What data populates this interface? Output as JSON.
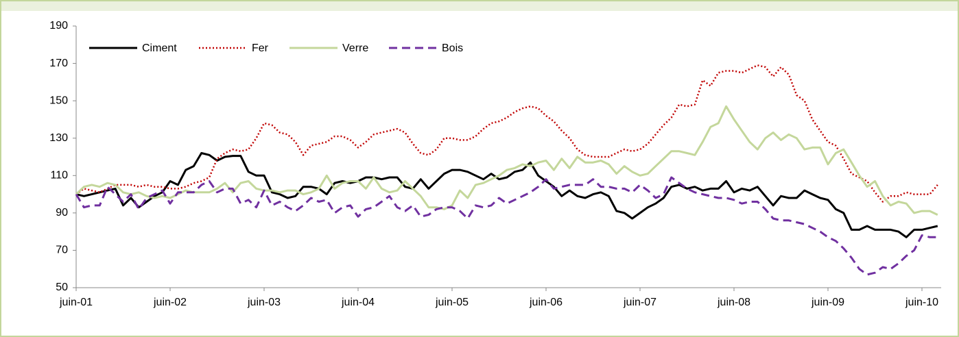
{
  "chart_data": {
    "type": "line",
    "categories": [
      "juin-01",
      null,
      null,
      null,
      null,
      null,
      null,
      null,
      null,
      null,
      null,
      null,
      "juin-02",
      null,
      null,
      null,
      null,
      null,
      null,
      null,
      null,
      null,
      null,
      null,
      "juin-03",
      null,
      null,
      null,
      null,
      null,
      null,
      null,
      null,
      null,
      null,
      null,
      "juin-04",
      null,
      null,
      null,
      null,
      null,
      null,
      null,
      null,
      null,
      null,
      null,
      "juin-05",
      null,
      null,
      null,
      null,
      null,
      null,
      null,
      null,
      null,
      null,
      null,
      "juin-06",
      null,
      null,
      null,
      null,
      null,
      null,
      null,
      null,
      null,
      null,
      null,
      "juin-07",
      null,
      null,
      null,
      null,
      null,
      null,
      null,
      null,
      null,
      null,
      null,
      "juin-08",
      null,
      null,
      null,
      null,
      null,
      null,
      null,
      null,
      null,
      null,
      null,
      "juin-09",
      null,
      null,
      null,
      null,
      null,
      null,
      null,
      null,
      null,
      null,
      null,
      "juin-10",
      null,
      null
    ],
    "series": [
      {
        "name": "Ciment",
        "color": "#000000",
        "style": "solid",
        "values": [
          100,
          99,
          100,
          101,
          102,
          103,
          94,
          98,
          93,
          96,
          99,
          101,
          107,
          105,
          113,
          115,
          122,
          121,
          118,
          120,
          120.5,
          120.5,
          112,
          110,
          110,
          101,
          100,
          98,
          99,
          104,
          104,
          103,
          100,
          106,
          107,
          106,
          107,
          109,
          109,
          108,
          109,
          109,
          104,
          103,
          108,
          103,
          107,
          111,
          113,
          113,
          112,
          110,
          108,
          111,
          108,
          109,
          112,
          113,
          117,
          110,
          107,
          104,
          99,
          102,
          99,
          98,
          100,
          101,
          99,
          91,
          90,
          87,
          90,
          93,
          95,
          98,
          104,
          105,
          103,
          104,
          102,
          103,
          103,
          107,
          101,
          103,
          102,
          104,
          99,
          94,
          99,
          98,
          98,
          102,
          100,
          98,
          97,
          92,
          90,
          81,
          81,
          83,
          81,
          81,
          81,
          80,
          77,
          81,
          81,
          82,
          83
        ]
      },
      {
        "name": "Fer",
        "color": "#c00000",
        "style": "dotted",
        "values": [
          100,
          103,
          102,
          101,
          103,
          105,
          105,
          105,
          104,
          105,
          104,
          104,
          103,
          103,
          104,
          106,
          107,
          109,
          119,
          122,
          124,
          123,
          124,
          130,
          138,
          137,
          133,
          132,
          128,
          121,
          126,
          127,
          128,
          131,
          131,
          129,
          125,
          128,
          132,
          133,
          134,
          135,
          133,
          127,
          122,
          121,
          124,
          130,
          130,
          129,
          129,
          131,
          135,
          138,
          139,
          141,
          144,
          146,
          147,
          146,
          142,
          139,
          134,
          130,
          124,
          121,
          120,
          120,
          120,
          122,
          124,
          123,
          124,
          127,
          132,
          137,
          141,
          148,
          147,
          148,
          161,
          158,
          165,
          166,
          166,
          165,
          167,
          169,
          168,
          163,
          168,
          164,
          153,
          150,
          140,
          134,
          128,
          126,
          119,
          111,
          109,
          107,
          101,
          96,
          99,
          99,
          101,
          100,
          100,
          100,
          105
        ]
      },
      {
        "name": "Verre",
        "color": "#c4d79b",
        "style": "solid",
        "values": [
          100,
          104,
          105,
          104,
          106,
          105,
          101,
          100,
          101,
          99,
          98,
          99,
          98,
          100,
          102,
          101,
          101,
          101,
          103,
          106,
          101,
          106,
          107,
          103,
          102,
          102,
          101,
          102,
          102,
          100,
          101,
          103,
          110,
          103,
          106,
          107,
          107,
          103,
          109,
          103,
          101,
          102,
          107,
          103,
          99,
          93,
          93,
          92,
          94,
          102,
          98,
          105,
          106,
          108,
          110,
          113,
          114,
          116,
          115,
          117,
          118,
          113,
          119,
          114,
          120,
          117,
          117,
          118,
          116,
          111,
          115,
          112,
          110,
          111,
          115,
          119,
          123,
          123,
          122,
          121,
          128,
          136,
          138,
          147,
          140,
          134,
          128,
          124,
          130,
          133,
          129,
          132,
          130,
          124,
          125,
          125,
          116,
          122,
          124,
          117,
          110,
          104,
          107,
          99,
          94,
          96,
          95,
          90,
          91,
          91,
          89
        ]
      },
      {
        "name": "Bois",
        "color": "#7030a0",
        "style": "dashed",
        "values": [
          100,
          93,
          94,
          94,
          104,
          100,
          96,
          100,
          92,
          98,
          100,
          102,
          95,
          101,
          101,
          101,
          105,
          107,
          101,
          103,
          103,
          95,
          97,
          93,
          102,
          94,
          96,
          93,
          91,
          94,
          98,
          96,
          97,
          90,
          93,
          94,
          88,
          92,
          93,
          96,
          99,
          93,
          91,
          94,
          88,
          89,
          92,
          93,
          93,
          91,
          87,
          94,
          93,
          94,
          98,
          95,
          97,
          99,
          101,
          104,
          108,
          103,
          104,
          105,
          105,
          105,
          108,
          104,
          104,
          103,
          103,
          101,
          105,
          102,
          98,
          100,
          109,
          106,
          103,
          101,
          100,
          99,
          98,
          98,
          97,
          95,
          96,
          96,
          92,
          87,
          86,
          86,
          85,
          84,
          82,
          80,
          77,
          75,
          71,
          66,
          60,
          57,
          58,
          61,
          60,
          63,
          67,
          70,
          78,
          77,
          77
        ]
      }
    ],
    "ylim": [
      50,
      190
    ],
    "yticks": [
      50,
      70,
      90,
      110,
      130,
      150,
      170,
      190
    ],
    "grid": false,
    "legend": "top-left"
  }
}
